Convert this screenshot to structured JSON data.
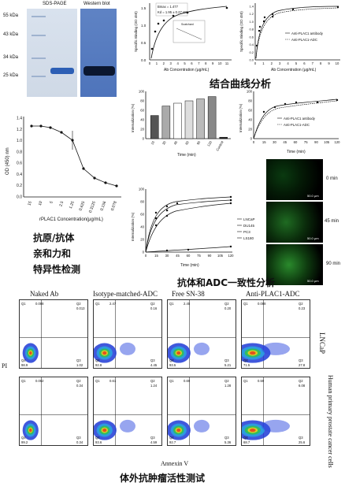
{
  "gel": {
    "sds_title": "SDS-PAGE",
    "wb_title": "Western blot",
    "markers": [
      "55 kDa",
      "43 kDa",
      "34 kDa",
      "25 kDa"
    ]
  },
  "captions": {
    "binding": "结合曲线分析",
    "antigen_line1": "抗原/抗体",
    "antigen_line2": "亲和力和",
    "antigen_line3": "特异性检测",
    "consistency": "抗体和ADC一致性分析",
    "invitro": "体外抗肿瘤活性测试"
  },
  "binding1": {
    "bmax": "Bmax = 1.477",
    "kd": "Kd = 1.95 ± 0.27 nM",
    "inset": "Scatchard",
    "xlabel": "Ab Concentration (μg/mL)",
    "ylabel": "Specific Binding (OD 450)",
    "xticks": [
      "0",
      "1",
      "2",
      "3",
      "4",
      "5",
      "6",
      "7",
      "8",
      "9",
      "10",
      "11"
    ],
    "yticks": [
      "0.0",
      "0.5",
      "1.0",
      "1.5"
    ]
  },
  "binding2": {
    "xlabel": "Ab Concentration (μg/mL)",
    "ylabel": "Specific Binding (OD 450)",
    "legend": [
      "Anti-PLAC1 antibody",
      "Anti-PLAC1-ADC"
    ],
    "xticks": [
      "0",
      "1",
      "2",
      "3",
      "4",
      "5",
      "6",
      "7",
      "8",
      "9",
      "10"
    ],
    "yticks": [
      "0.0",
      "0.2",
      "0.4",
      "0.6",
      "0.8",
      "1.0",
      "1.2",
      "1.4"
    ]
  },
  "internal_bar": {
    "ylabel": "Internalization (%)",
    "xlabel": "Time (min)",
    "categories": [
      "15",
      "30",
      "45",
      "60",
      "90",
      "120",
      "Control"
    ],
    "values": [
      49,
      69,
      75,
      80,
      84,
      89,
      3
    ],
    "yticks": [
      "0",
      "20",
      "40",
      "60",
      "80",
      "100"
    ]
  },
  "internal_line": {
    "ylabel": "Internalization (%)",
    "xlabel": "Time (min)",
    "legend": [
      "Anti-PLAC1 antibody",
      "Anti-PLAC1-ADC"
    ],
    "xticks": [
      "0",
      "15",
      "30",
      "45",
      "60",
      "75",
      "90",
      "105",
      "120"
    ],
    "yticks": [
      "0",
      "20",
      "40",
      "60",
      "80",
      "100"
    ]
  },
  "od_chart": {
    "ylabel": "OD (450) nm",
    "xlabel": "rPLAC1 Concentration(μg/mL)",
    "xticks": [
      "15",
      "10",
      "5",
      "2.5",
      "1.25",
      "0.625",
      "0.3125",
      "0.156",
      "0.078"
    ],
    "yticks": [
      "0.0",
      "0.2",
      "0.4",
      "0.6",
      "0.8",
      "1.0",
      "1.2",
      "1.4"
    ]
  },
  "internal_cells": {
    "ylabel": "Internalization (%)",
    "xlabel": "Time (min)",
    "legend": [
      "LNCaP",
      "DU145",
      "PC3",
      "LS180"
    ],
    "xticks": [
      "0",
      "15",
      "30",
      "45",
      "60",
      "75",
      "90",
      "105",
      "120"
    ],
    "yticks": [
      "0",
      "20",
      "40",
      "60",
      "80",
      "100"
    ]
  },
  "fluor": {
    "times": [
      "0 min",
      "45 min",
      "90 min"
    ],
    "scale": "50.0 μm"
  },
  "flow": {
    "columns": [
      "Naked Ab",
      "Isotype-matched-ADC",
      "Free SN-38",
      "Anti-PLAC1-ADC"
    ],
    "row1_label": "LNCaP",
    "row2_label": "Human primary prostate cancer cells",
    "xaxis": "Annexin V",
    "yaxis": "PI",
    "row1_quads": [
      [
        "Q1",
        "0.088",
        "Q2",
        "0.013",
        "Q4",
        "98.9",
        "Q3",
        "1.02"
      ],
      [
        "Q1",
        "2.47",
        "Q2",
        "0.16",
        "Q4",
        "92.8",
        "Q3",
        "4.45"
      ],
      [
        "Q1",
        "2.45",
        "Q2",
        "0.20",
        "Q4",
        "93.5",
        "Q3",
        "5.21"
      ],
      [
        "Q1",
        "0.088",
        "Q2",
        "0.23",
        "Q4",
        "71.5",
        "Q3",
        "27.8"
      ]
    ],
    "row2_quads": [
      [
        "Q1",
        "0.062",
        "Q2",
        "0.34",
        "Q4",
        "99.2",
        "Q3",
        "0.34"
      ],
      [
        "Q1",
        "0.61",
        "Q2",
        "1.24",
        "Q4",
        "93.6",
        "Q3",
        "4.59"
      ],
      [
        "Q1",
        "0.69",
        "Q2",
        "1.28",
        "Q4",
        "92.7",
        "Q3",
        "5.36"
      ],
      [
        "Q1",
        "0.59",
        "Q2",
        "6.08",
        "Q4",
        "68.7",
        "Q3",
        "25.6"
      ]
    ]
  }
}
